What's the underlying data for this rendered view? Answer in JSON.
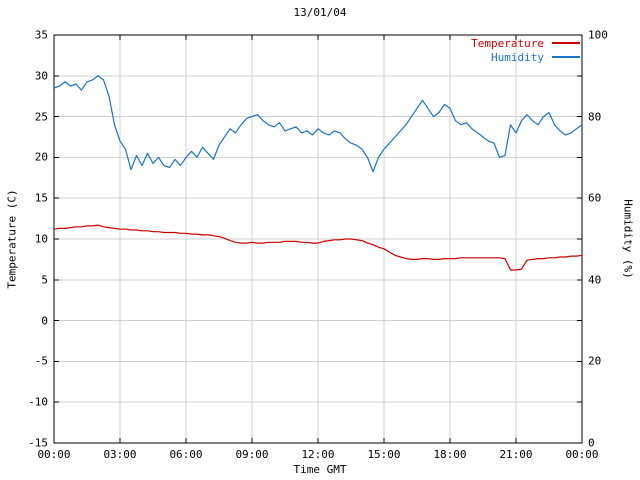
{
  "chart_data": {
    "type": "line",
    "title": "13/01/04",
    "xlabel": "Time GMT",
    "ylabel_left": "Temperature (C)",
    "ylabel_right": "Humidity (%)",
    "grid": true,
    "x_min": 0,
    "x_max": 24,
    "x_start": 0,
    "x_step": 0.25,
    "x_ticks": [
      {
        "t": 0,
        "label": "00:00"
      },
      {
        "t": 3,
        "label": "03:00"
      },
      {
        "t": 6,
        "label": "06:00"
      },
      {
        "t": 9,
        "label": "09:00"
      },
      {
        "t": 12,
        "label": "12:00"
      },
      {
        "t": 15,
        "label": "15:00"
      },
      {
        "t": 18,
        "label": "18:00"
      },
      {
        "t": 21,
        "label": "21:00"
      },
      {
        "t": 24,
        "label": "00:00"
      }
    ],
    "y_left": {
      "min": -15,
      "max": 35,
      "tick_step": 5,
      "tick_values": [
        35,
        30,
        25,
        20,
        15,
        10,
        5,
        0,
        -5,
        -10,
        -15
      ],
      "tick_labels": [
        "35",
        "30",
        "25",
        "20",
        "15",
        "10",
        "5",
        "0",
        "-5",
        "-10",
        "-15"
      ]
    },
    "y_right": {
      "min": 0,
      "max": 100,
      "tick_step": 20,
      "tick_values": [
        100,
        80,
        60,
        40,
        20,
        0
      ],
      "tick_labels": [
        "100",
        "80",
        "60",
        "40",
        "20",
        "0"
      ]
    },
    "legend": [
      {
        "label": "Temperature"
      },
      {
        "label": "Humidity"
      }
    ],
    "colors": {
      "temperature": "#cc0000",
      "humidity": "#1874cd",
      "grid": "#d0d0d0",
      "axis": "#000000"
    },
    "series": [
      {
        "name": "Temperature",
        "axis": "left",
        "values": [
          11.2,
          11.3,
          11.3,
          11.4,
          11.5,
          11.5,
          11.6,
          11.6,
          11.7,
          11.5,
          11.4,
          11.3,
          11.2,
          11.2,
          11.1,
          11.1,
          11.0,
          11.0,
          10.9,
          10.9,
          10.8,
          10.8,
          10.8,
          10.7,
          10.7,
          10.6,
          10.6,
          10.5,
          10.5,
          10.4,
          10.3,
          10.1,
          9.8,
          9.6,
          9.5,
          9.5,
          9.6,
          9.5,
          9.5,
          9.6,
          9.6,
          9.6,
          9.7,
          9.7,
          9.7,
          9.6,
          9.6,
          9.5,
          9.5,
          9.7,
          9.8,
          9.9,
          9.9,
          10.0,
          10.0,
          9.9,
          9.8,
          9.5,
          9.3,
          9.0,
          8.8,
          8.4,
          8.0,
          7.8,
          7.6,
          7.5,
          7.5,
          7.6,
          7.6,
          7.5,
          7.5,
          7.6,
          7.6,
          7.6,
          7.7,
          7.7,
          7.7,
          7.7,
          7.7,
          7.7,
          7.7,
          7.7,
          7.6,
          6.2,
          6.2,
          6.3,
          7.4,
          7.5,
          7.6,
          7.6,
          7.7,
          7.7,
          7.8,
          7.8,
          7.9,
          7.9,
          8.0
        ]
      },
      {
        "name": "Humidity",
        "axis": "right",
        "values": [
          87,
          87.5,
          88.5,
          87.5,
          88,
          86.5,
          88.5,
          89,
          90,
          89,
          85,
          78,
          74,
          72,
          67,
          70.5,
          68,
          71,
          68.5,
          70,
          68,
          67.5,
          69.5,
          68,
          70,
          71.5,
          70,
          72.5,
          71,
          69.5,
          73,
          75,
          77,
          76,
          78,
          79.5,
          80,
          80.5,
          79,
          78,
          77.5,
          78.5,
          76.5,
          77,
          77.5,
          76,
          76.5,
          75.5,
          77,
          76,
          75.5,
          76.5,
          76,
          74.5,
          73.5,
          73,
          72,
          70,
          66.5,
          70,
          72,
          73.5,
          75,
          76.5,
          78,
          80,
          82,
          84,
          82,
          80,
          81,
          83,
          82,
          79,
          78,
          78.5,
          77,
          76,
          75,
          74,
          73.5,
          70,
          70.5,
          78,
          76,
          79,
          80.5,
          79,
          78,
          80,
          81,
          78,
          76.5,
          75.5,
          76,
          77,
          78
        ]
      }
    ]
  }
}
